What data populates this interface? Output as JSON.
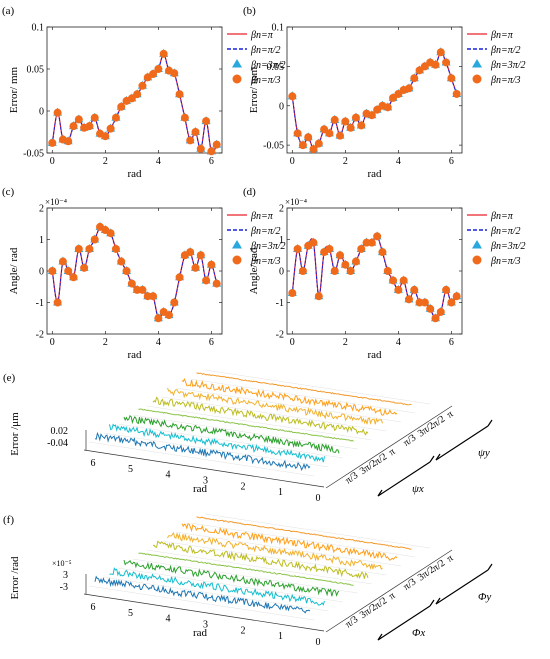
{
  "chart_data": [
    {
      "id": "a",
      "type": "line",
      "panel_label": "(a)",
      "xlabel": "rad",
      "ylabel": "Error/ mm",
      "xlim": [
        -0.2,
        6.4
      ],
      "ylim": [
        -0.05,
        0.1
      ],
      "xticks": [
        0,
        2,
        4,
        6
      ],
      "xtick_labels": [
        "0",
        "2",
        "4",
        "6"
      ],
      "yticks": [
        -0.05,
        0,
        0.05,
        0.1
      ],
      "ytick_labels": [
        "-0.05",
        "0",
        "0.05",
        "0.1"
      ],
      "exponent_label": "",
      "x": [
        0,
        0.2,
        0.4,
        0.6,
        0.8,
        1.0,
        1.2,
        1.4,
        1.6,
        1.8,
        2.0,
        2.2,
        2.4,
        2.6,
        2.8,
        3.0,
        3.2,
        3.4,
        3.6,
        3.8,
        4.0,
        4.2,
        4.4,
        4.6,
        4.8,
        5.0,
        5.2,
        5.4,
        5.6,
        5.8,
        6.0,
        6.2
      ],
      "y": [
        -0.038,
        -0.002,
        -0.034,
        -0.036,
        -0.018,
        -0.01,
        -0.02,
        -0.018,
        -0.008,
        -0.027,
        -0.03,
        -0.021,
        -0.008,
        0.005,
        0.012,
        0.015,
        0.02,
        0.03,
        0.04,
        0.044,
        0.05,
        0.068,
        0.048,
        0.045,
        0.02,
        -0.008,
        -0.035,
        -0.025,
        -0.045,
        -0.012,
        -0.048,
        -0.04
      ],
      "legend": [
        "βn=π",
        "βn=π/2",
        "βn=3π/2",
        "βn=π/3"
      ],
      "legend_position": "right",
      "colors": {
        "line_red": "#e8202a",
        "line_blue": "#1a22d6",
        "triangle": "#29a8e0",
        "circle": "#f06a1c"
      }
    },
    {
      "id": "b",
      "type": "line",
      "panel_label": "(b)",
      "xlabel": "rad",
      "ylabel": "Error/ mm",
      "xlim": [
        -0.2,
        6.4
      ],
      "ylim": [
        -0.06,
        0.1
      ],
      "xticks": [
        0,
        2,
        4,
        6
      ],
      "xtick_labels": [
        "0",
        "2",
        "4",
        "6"
      ],
      "yticks": [
        -0.05,
        0,
        0.05,
        0.1
      ],
      "ytick_labels": [
        "-0.05",
        "0",
        "0.05",
        "0.1"
      ],
      "exponent_label": "",
      "x": [
        0,
        0.2,
        0.4,
        0.6,
        0.8,
        1.0,
        1.2,
        1.4,
        1.6,
        1.8,
        2.0,
        2.2,
        2.4,
        2.6,
        2.8,
        3.0,
        3.2,
        3.4,
        3.6,
        3.8,
        4.0,
        4.2,
        4.4,
        4.6,
        4.8,
        5.0,
        5.2,
        5.4,
        5.6,
        5.8,
        6.0,
        6.2
      ],
      "y": [
        0.012,
        -0.035,
        -0.05,
        -0.04,
        -0.055,
        -0.048,
        -0.03,
        -0.035,
        -0.018,
        -0.038,
        -0.02,
        -0.028,
        -0.015,
        -0.025,
        -0.01,
        -0.012,
        -0.005,
        0.0,
        -0.002,
        0.01,
        0.015,
        0.02,
        0.022,
        0.035,
        0.045,
        0.05,
        0.055,
        0.052,
        0.068,
        0.055,
        0.035,
        0.015
      ],
      "legend": [
        "βn=π",
        "βn=π/2",
        "βn=3π/2",
        "βn=π/3"
      ],
      "legend_position": "right",
      "colors": {
        "line_red": "#e8202a",
        "line_blue": "#1a22d6",
        "triangle": "#29a8e0",
        "circle": "#f06a1c"
      }
    },
    {
      "id": "c",
      "type": "line",
      "panel_label": "(c)",
      "xlabel": "rad",
      "ylabel": "Angle/ rad",
      "xlim": [
        -0.2,
        6.4
      ],
      "ylim": [
        -2,
        2
      ],
      "xticks": [
        0,
        2,
        4,
        6
      ],
      "xtick_labels": [
        "0",
        "2",
        "4",
        "6"
      ],
      "yticks": [
        -2,
        -1,
        0,
        1,
        2
      ],
      "ytick_labels": [
        "-2",
        "-1",
        "0",
        "1",
        "2"
      ],
      "exponent_label": "×10⁻⁴",
      "x": [
        0,
        0.2,
        0.4,
        0.6,
        0.8,
        1.0,
        1.2,
        1.4,
        1.6,
        1.8,
        2.0,
        2.2,
        2.4,
        2.6,
        2.8,
        3.0,
        3.2,
        3.4,
        3.6,
        3.8,
        4.0,
        4.2,
        4.4,
        4.6,
        4.8,
        5.0,
        5.2,
        5.4,
        5.6,
        5.8,
        6.0,
        6.2
      ],
      "y": [
        0.0,
        -1.0,
        0.3,
        0.0,
        -0.2,
        0.7,
        0.1,
        0.7,
        1.0,
        1.4,
        1.3,
        1.2,
        0.7,
        0.3,
        0.0,
        -0.4,
        -0.6,
        -0.6,
        -0.8,
        -0.8,
        -1.5,
        -1.3,
        -1.4,
        -1.0,
        -0.2,
        0.5,
        0.6,
        0.1,
        0.5,
        -0.3,
        0.2,
        -0.4
      ],
      "legend": [
        "βn=π",
        "βn=π/2",
        "βn=3π/2",
        "βn=π/3"
      ],
      "legend_position": "right",
      "colors": {
        "line_red": "#e8202a",
        "line_blue": "#1a22d6",
        "triangle": "#29a8e0",
        "circle": "#f06a1c"
      }
    },
    {
      "id": "d",
      "type": "line",
      "panel_label": "(d)",
      "xlabel": "rad",
      "ylabel": "Angle/ rad",
      "xlim": [
        -0.2,
        6.4
      ],
      "ylim": [
        -2,
        2
      ],
      "xticks": [
        0,
        2,
        4,
        6
      ],
      "xtick_labels": [
        "0",
        "2",
        "4",
        "6"
      ],
      "yticks": [
        -2,
        -1,
        0,
        1,
        2
      ],
      "ytick_labels": [
        "-2",
        "-1",
        "0",
        "1",
        "2"
      ],
      "exponent_label": "×10⁻⁴",
      "x": [
        0,
        0.2,
        0.4,
        0.6,
        0.8,
        1.0,
        1.2,
        1.4,
        1.6,
        1.8,
        2.0,
        2.2,
        2.4,
        2.6,
        2.8,
        3.0,
        3.2,
        3.4,
        3.6,
        3.8,
        4.0,
        4.2,
        4.4,
        4.6,
        4.8,
        5.0,
        5.2,
        5.4,
        5.6,
        5.8,
        6.0,
        6.2
      ],
      "y": [
        -0.7,
        0.7,
        0.0,
        0.8,
        0.9,
        -0.8,
        0.6,
        0.7,
        0.0,
        0.5,
        0.2,
        0.0,
        0.3,
        0.7,
        0.9,
        0.9,
        1.1,
        0.6,
        0.0,
        -0.3,
        -0.6,
        -0.3,
        -0.9,
        -0.6,
        -1.0,
        -1.0,
        -1.2,
        -1.5,
        -1.3,
        -0.6,
        -1.0,
        -0.8
      ],
      "legend": [
        "βn=π",
        "βn=π/2",
        "βn=3π/2",
        "βn=π/3"
      ],
      "legend_position": "right",
      "colors": {
        "line_red": "#e8202a",
        "line_blue": "#1a22d6",
        "triangle": "#29a8e0",
        "circle": "#f06a1c"
      }
    },
    {
      "id": "e",
      "type": "line",
      "view": "3d-waterfall",
      "panel_label": "(e)",
      "xlabel": "rad",
      "ylabel": "Error /μm",
      "xticks": [
        0,
        1,
        2,
        3,
        4,
        5,
        6
      ],
      "xtick_labels": [
        "0",
        "1",
        "2",
        "3",
        "4",
        "5",
        "6"
      ],
      "ztick_labels": [
        "0.02",
        "-0.04"
      ],
      "depth_tick_labels": [
        "π/3",
        "3π/2",
        "π/2",
        "π",
        "π/3",
        "3π/2",
        "π/2",
        "π"
      ],
      "group_labels": [
        "ψx",
        "ψy"
      ],
      "series_colors": [
        "#1f77b4",
        "#17becf",
        "#2ca02c",
        "#8bc34a",
        "#bcbd22",
        "#f2b230",
        "#ff9f1a",
        "#f29a2e"
      ],
      "series_noise_levels": [
        1.0,
        1.0,
        1.0,
        0.15,
        1.0,
        1.0,
        1.0,
        0.15
      ]
    },
    {
      "id": "f",
      "type": "line",
      "view": "3d-waterfall",
      "panel_label": "(f)",
      "xlabel": "rad",
      "ylabel": "Error /rad",
      "xticks": [
        0,
        1,
        2,
        3,
        4,
        5,
        6
      ],
      "xtick_labels": [
        "0",
        "1",
        "2",
        "3",
        "4",
        "5",
        "6"
      ],
      "ztick_labels": [
        "3",
        "-3"
      ],
      "exponent_label": "×10⁻⁵",
      "depth_tick_labels": [
        "π/3",
        "3π/2",
        "π/2",
        "π",
        "π/3",
        "3π/2",
        "π/2",
        "π"
      ],
      "group_labels": [
        "Φx",
        "Φy"
      ],
      "series_colors": [
        "#1f77b4",
        "#17becf",
        "#2ca02c",
        "#8bc34a",
        "#bcbd22",
        "#f2b230",
        "#ff9f1a",
        "#f29a2e"
      ],
      "series_noise_levels": [
        1.0,
        1.0,
        1.0,
        0.15,
        1.0,
        1.0,
        1.0,
        0.15
      ]
    }
  ]
}
